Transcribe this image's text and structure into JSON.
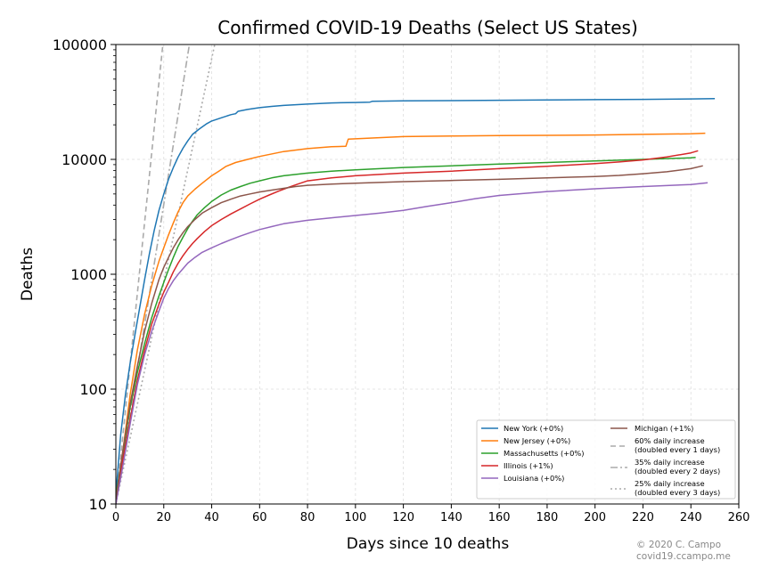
{
  "chart_data": {
    "type": "line",
    "title": "Confirmed COVID-19 Deaths (Select US States)",
    "xlabel": "Days since 10 deaths",
    "ylabel": "Deaths",
    "xlim": [
      0,
      260
    ],
    "ylim": [
      10,
      100000
    ],
    "yscale": "log",
    "x_ticks": [
      0,
      20,
      40,
      60,
      80,
      100,
      120,
      140,
      160,
      180,
      200,
      220,
      240,
      260
    ],
    "y_ticks": [
      10,
      100,
      1000,
      10000,
      100000
    ],
    "grid": true,
    "legend_position": "lower-right",
    "series": [
      {
        "name": "New York (+0%)",
        "color": "#1f77b4",
        "x": [
          0,
          2,
          4,
          6,
          8,
          10,
          12,
          14,
          16,
          18,
          20,
          22,
          24,
          26,
          28,
          30,
          32,
          35,
          38,
          40,
          44,
          48,
          50,
          51,
          55,
          60,
          65,
          70,
          80,
          90,
          100,
          106,
          107,
          120,
          140,
          160,
          180,
          200,
          220,
          240,
          250
        ],
        "y": [
          12,
          40,
          90,
          170,
          300,
          520,
          900,
          1500,
          2400,
          3600,
          5000,
          6700,
          8500,
          10500,
          12500,
          14500,
          16500,
          18500,
          20500,
          21600,
          23000,
          24500,
          25000,
          26200,
          27200,
          28200,
          28900,
          29500,
          30300,
          31000,
          31300,
          31500,
          32000,
          32300,
          32500,
          32700,
          32900,
          33100,
          33300,
          33600,
          33800
        ]
      },
      {
        "name": "New Jersey (+0%)",
        "color": "#ff7f0e",
        "x": [
          0,
          3,
          6,
          9,
          12,
          15,
          18,
          20,
          22,
          24,
          26,
          28,
          30,
          33,
          36,
          40,
          43,
          46,
          50,
          55,
          60,
          70,
          80,
          90,
          96,
          97,
          105,
          120,
          140,
          160,
          180,
          200,
          220,
          240,
          246
        ],
        "y": [
          11,
          30,
          90,
          220,
          450,
          800,
          1300,
          1700,
          2200,
          2800,
          3500,
          4200,
          4800,
          5500,
          6200,
          7200,
          7900,
          8700,
          9400,
          10000,
          10600,
          11700,
          12400,
          12900,
          13000,
          15000,
          15300,
          15800,
          16000,
          16100,
          16200,
          16300,
          16500,
          16700,
          16900
        ]
      },
      {
        "name": "Massachusetts (+0%)",
        "color": "#2ca02c",
        "x": [
          0,
          3,
          6,
          9,
          12,
          15,
          18,
          20,
          22,
          24,
          26,
          28,
          30,
          32,
          34,
          37,
          40,
          44,
          48,
          52,
          56,
          60,
          65,
          70,
          80,
          90,
          100,
          120,
          140,
          160,
          180,
          200,
          220,
          240,
          242
        ],
        "y": [
          12,
          28,
          70,
          140,
          250,
          420,
          650,
          850,
          1100,
          1400,
          1750,
          2100,
          2500,
          2900,
          3300,
          3800,
          4300,
          4900,
          5400,
          5800,
          6200,
          6500,
          6900,
          7200,
          7600,
          7900,
          8100,
          8500,
          8800,
          9100,
          9400,
          9700,
          10000,
          10300,
          10400
        ]
      },
      {
        "name": "Illinois (+1%)",
        "color": "#d62728",
        "x": [
          0,
          3,
          6,
          9,
          12,
          15,
          18,
          20,
          22,
          24,
          26,
          28,
          30,
          32,
          34,
          37,
          40,
          44,
          48,
          52,
          56,
          60,
          64,
          68,
          72,
          76,
          80,
          90,
          100,
          120,
          140,
          160,
          180,
          200,
          210,
          220,
          230,
          240,
          243
        ],
        "y": [
          10,
          25,
          55,
          120,
          220,
          370,
          550,
          700,
          850,
          1050,
          1250,
          1450,
          1650,
          1850,
          2050,
          2350,
          2650,
          3000,
          3350,
          3700,
          4100,
          4500,
          4900,
          5300,
          5700,
          6100,
          6500,
          6900,
          7200,
          7600,
          7900,
          8300,
          8700,
          9200,
          9500,
          9900,
          10500,
          11400,
          11900
        ]
      },
      {
        "name": "Louisiana (+0%)",
        "color": "#9467bd",
        "x": [
          0,
          3,
          6,
          9,
          12,
          15,
          18,
          20,
          22,
          24,
          26,
          28,
          30,
          33,
          36,
          40,
          44,
          48,
          52,
          56,
          60,
          65,
          70,
          80,
          90,
          100,
          110,
          120,
          130,
          140,
          150,
          160,
          180,
          200,
          220,
          240,
          247
        ],
        "y": [
          10,
          22,
          50,
          110,
          200,
          320,
          480,
          620,
          750,
          880,
          1000,
          1120,
          1250,
          1400,
          1550,
          1700,
          1850,
          2000,
          2150,
          2300,
          2450,
          2600,
          2750,
          2950,
          3100,
          3250,
          3400,
          3600,
          3900,
          4200,
          4550,
          4850,
          5250,
          5550,
          5800,
          6050,
          6250
        ]
      },
      {
        "name": "Michigan (+1%)",
        "color": "#8c564b",
        "x": [
          0,
          3,
          6,
          9,
          12,
          15,
          18,
          20,
          22,
          24,
          26,
          28,
          30,
          33,
          36,
          40,
          44,
          48,
          52,
          56,
          60,
          65,
          70,
          75,
          80,
          90,
          100,
          120,
          140,
          160,
          180,
          200,
          210,
          220,
          230,
          240,
          245
        ],
        "y": [
          11,
          30,
          75,
          160,
          320,
          560,
          900,
          1150,
          1400,
          1700,
          2000,
          2300,
          2600,
          3000,
          3400,
          3800,
          4200,
          4500,
          4800,
          5000,
          5200,
          5400,
          5600,
          5800,
          5950,
          6100,
          6200,
          6400,
          6550,
          6700,
          6900,
          7100,
          7250,
          7500,
          7800,
          8300,
          8800
        ]
      }
    ],
    "reference_lines": [
      {
        "name": "60% daily increase",
        "note": "(doubled every 1 days)",
        "color": "#aaaaaa",
        "style": "dashed",
        "rate": 0.6
      },
      {
        "name": "35% daily increase",
        "note": "(doubled every 2 days)",
        "color": "#aaaaaa",
        "style": "dashdot",
        "rate": 0.35
      },
      {
        "name": "25% daily increase",
        "note": "(doubled every 3 days)",
        "color": "#aaaaaa",
        "style": "dotted",
        "rate": 0.25
      }
    ]
  },
  "footer": {
    "copyright": "© 2020 C. Campo",
    "site": "covid19.ccampo.me"
  }
}
